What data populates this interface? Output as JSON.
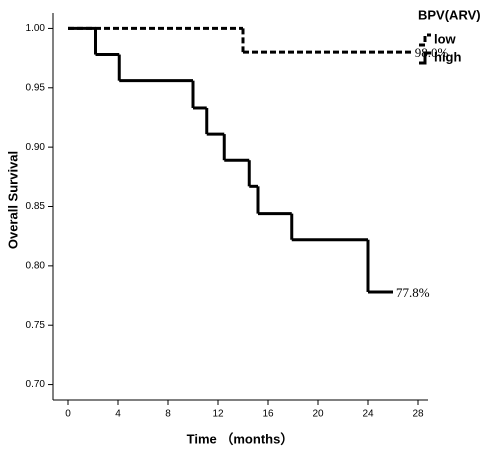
{
  "chart_data": {
    "type": "step",
    "xlabel": "Time （months）",
    "ylabel": "Overall Survival",
    "xlim": [
      -1.2,
      28.8
    ],
    "ylim": [
      0.687,
      1.013
    ],
    "xticks": [
      0,
      4,
      8,
      12,
      16,
      20,
      24,
      28
    ],
    "yticks": [
      {
        "value": 0.7,
        "label": "0.70"
      },
      {
        "value": 0.75,
        "label": "0.75"
      },
      {
        "value": 0.8,
        "label": "0.80"
      },
      {
        "value": 0.85,
        "label": "0.85"
      },
      {
        "value": 0.9,
        "label": "0.90"
      },
      {
        "value": 0.95,
        "label": "0.95"
      },
      {
        "value": 1.0,
        "label": "1.00"
      }
    ],
    "legend_title": "BPV(ARV)",
    "legend_position": "top-right",
    "series": [
      {
        "name": "low",
        "color": "#000000",
        "style": "dashed",
        "x": [
          0,
          14,
          27.5
        ],
        "values": [
          1.0,
          0.98,
          0.98
        ],
        "end_label": "98.0%"
      },
      {
        "name": "high",
        "color": "#000000",
        "style": "solid",
        "x": [
          0,
          2.2,
          4.1,
          10,
          11.1,
          12.5,
          14.5,
          15.2,
          17.9,
          24,
          26
        ],
        "values": [
          1.0,
          0.978,
          0.956,
          0.933,
          0.911,
          0.889,
          0.867,
          0.844,
          0.822,
          0.778,
          0.778
        ],
        "end_label": "77.8%"
      }
    ]
  }
}
